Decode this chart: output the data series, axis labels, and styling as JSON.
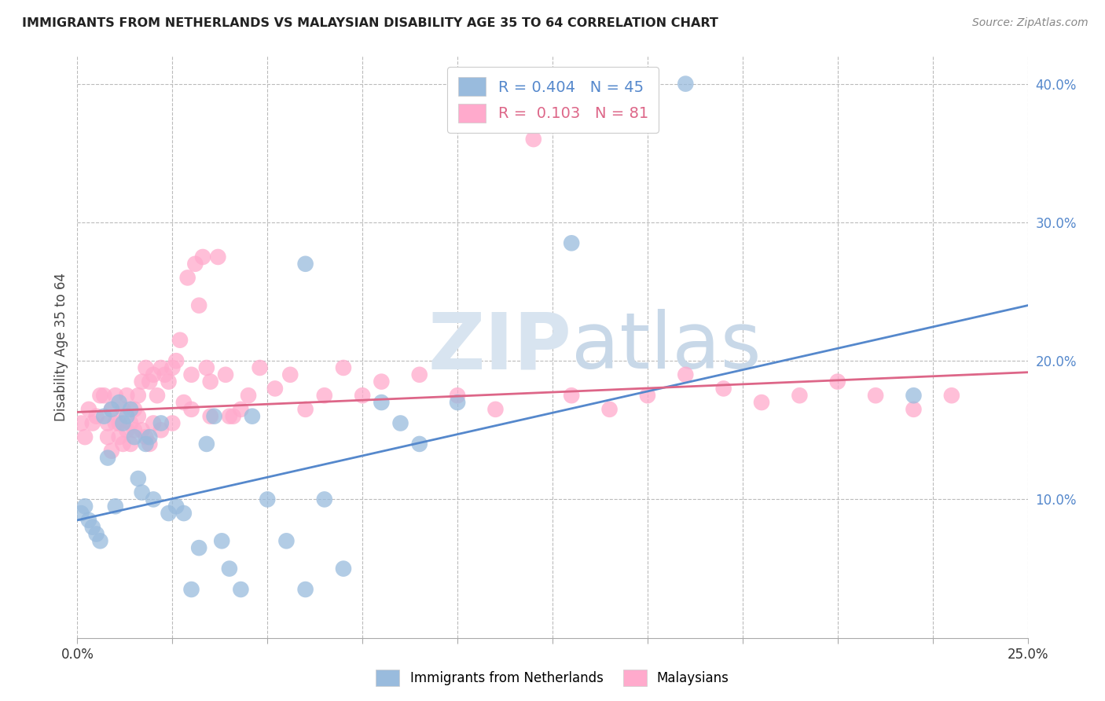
{
  "title": "IMMIGRANTS FROM NETHERLANDS VS MALAYSIAN DISABILITY AGE 35 TO 64 CORRELATION CHART",
  "source": "Source: ZipAtlas.com",
  "ylabel": "Disability Age 35 to 64",
  "xlim": [
    0.0,
    0.25
  ],
  "ylim": [
    0.0,
    0.42
  ],
  "x_ticks": [
    0.0,
    0.025,
    0.05,
    0.075,
    0.1,
    0.125,
    0.15,
    0.175,
    0.2,
    0.225,
    0.25
  ],
  "y_ticks": [
    0.1,
    0.2,
    0.3,
    0.4
  ],
  "legend_label_blue": "Immigrants from Netherlands",
  "legend_label_pink": "Malaysians",
  "R_blue": 0.404,
  "N_blue": 45,
  "R_pink": 0.103,
  "N_pink": 81,
  "blue_color": "#99BBDD",
  "pink_color": "#FFAACC",
  "blue_line_color": "#5588CC",
  "pink_line_color": "#DD6688",
  "blue_tick_color": "#5588CC",
  "background_color": "#FFFFFF",
  "watermark_zip": "ZIP",
  "watermark_atlas": "atlas",
  "blue_intercept": 0.085,
  "blue_slope": 0.62,
  "pink_intercept": 0.163,
  "pink_slope": 0.115,
  "blue_x": [
    0.001,
    0.002,
    0.003,
    0.004,
    0.005,
    0.006,
    0.007,
    0.008,
    0.009,
    0.01,
    0.011,
    0.012,
    0.013,
    0.014,
    0.015,
    0.016,
    0.017,
    0.018,
    0.019,
    0.02,
    0.022,
    0.024,
    0.026,
    0.028,
    0.03,
    0.032,
    0.034,
    0.036,
    0.038,
    0.04,
    0.043,
    0.046,
    0.05,
    0.055,
    0.06,
    0.065,
    0.07,
    0.08,
    0.09,
    0.1,
    0.06,
    0.085,
    0.16,
    0.22,
    0.13
  ],
  "blue_y": [
    0.09,
    0.095,
    0.085,
    0.08,
    0.075,
    0.07,
    0.16,
    0.13,
    0.165,
    0.095,
    0.17,
    0.155,
    0.16,
    0.165,
    0.145,
    0.115,
    0.105,
    0.14,
    0.145,
    0.1,
    0.155,
    0.09,
    0.095,
    0.09,
    0.035,
    0.065,
    0.14,
    0.16,
    0.07,
    0.05,
    0.035,
    0.16,
    0.1,
    0.07,
    0.035,
    0.1,
    0.05,
    0.17,
    0.14,
    0.17,
    0.27,
    0.155,
    0.4,
    0.175,
    0.285
  ],
  "pink_x": [
    0.001,
    0.002,
    0.003,
    0.004,
    0.005,
    0.006,
    0.007,
    0.008,
    0.009,
    0.01,
    0.011,
    0.012,
    0.013,
    0.014,
    0.015,
    0.016,
    0.017,
    0.018,
    0.019,
    0.02,
    0.021,
    0.022,
    0.023,
    0.024,
    0.025,
    0.026,
    0.027,
    0.028,
    0.029,
    0.03,
    0.031,
    0.032,
    0.033,
    0.034,
    0.035,
    0.037,
    0.039,
    0.041,
    0.043,
    0.045,
    0.048,
    0.052,
    0.056,
    0.06,
    0.065,
    0.07,
    0.075,
    0.08,
    0.09,
    0.1,
    0.11,
    0.12,
    0.13,
    0.14,
    0.15,
    0.16,
    0.17,
    0.18,
    0.19,
    0.2,
    0.21,
    0.22,
    0.23,
    0.008,
    0.009,
    0.01,
    0.011,
    0.012,
    0.013,
    0.014,
    0.015,
    0.016,
    0.017,
    0.018,
    0.019,
    0.02,
    0.022,
    0.025,
    0.03,
    0.035,
    0.04
  ],
  "pink_y": [
    0.155,
    0.145,
    0.165,
    0.155,
    0.16,
    0.175,
    0.175,
    0.155,
    0.165,
    0.175,
    0.155,
    0.165,
    0.175,
    0.155,
    0.165,
    0.175,
    0.185,
    0.195,
    0.185,
    0.19,
    0.175,
    0.195,
    0.19,
    0.185,
    0.195,
    0.2,
    0.215,
    0.17,
    0.26,
    0.19,
    0.27,
    0.24,
    0.275,
    0.195,
    0.185,
    0.275,
    0.19,
    0.16,
    0.165,
    0.175,
    0.195,
    0.18,
    0.19,
    0.165,
    0.175,
    0.195,
    0.175,
    0.185,
    0.19,
    0.175,
    0.165,
    0.36,
    0.175,
    0.165,
    0.175,
    0.19,
    0.18,
    0.17,
    0.175,
    0.185,
    0.175,
    0.165,
    0.175,
    0.145,
    0.135,
    0.155,
    0.145,
    0.14,
    0.15,
    0.14,
    0.15,
    0.16,
    0.15,
    0.145,
    0.14,
    0.155,
    0.15,
    0.155,
    0.165,
    0.16,
    0.16
  ]
}
